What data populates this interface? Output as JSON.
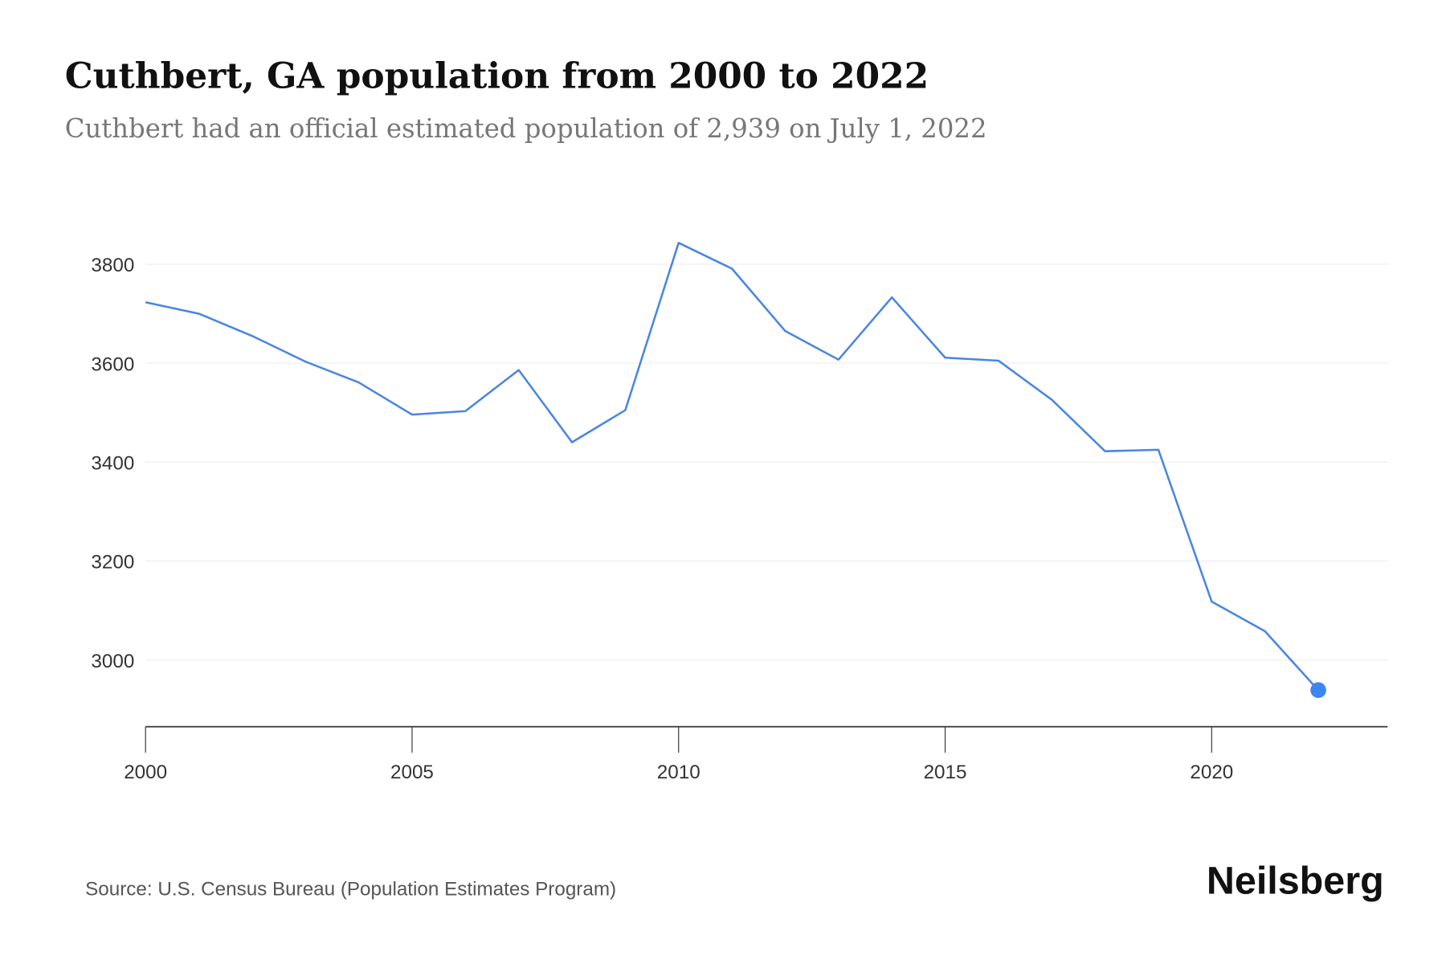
{
  "title": "Cuthbert, GA population from 2000 to 2022",
  "subtitle": "Cuthbert had an official estimated population of 2,939 on July 1, 2022",
  "source": "Source: U.S. Census Bureau (Population Estimates Program)",
  "brand": "Neilsberg",
  "colors": {
    "line": "#4a86e0",
    "marker": "#3d85f0"
  },
  "chart_data": {
    "type": "line",
    "title": "Cuthbert, GA population from 2000 to 2022",
    "xlabel": "",
    "ylabel": "",
    "x": [
      2000,
      2001,
      2002,
      2003,
      2004,
      2005,
      2006,
      2007,
      2008,
      2009,
      2010,
      2011,
      2012,
      2013,
      2014,
      2015,
      2016,
      2017,
      2018,
      2019,
      2020,
      2021,
      2022
    ],
    "values": [
      3723,
      3700,
      3655,
      3603,
      3561,
      3496,
      3503,
      3586,
      3440,
      3505,
      3843,
      3791,
      3665,
      3607,
      3733,
      3611,
      3605,
      3526,
      3422,
      3425,
      3118,
      3058,
      2939
    ],
    "xticks": [
      "2000",
      "2005",
      "2010",
      "2015",
      "2020"
    ],
    "yticks": [
      "3000",
      "3200",
      "3400",
      "3600",
      "3800"
    ],
    "xlim": [
      2000,
      2023.3
    ],
    "ylim": [
      2865,
      3900
    ],
    "grid": "horizontal",
    "highlight_last_point": true
  }
}
